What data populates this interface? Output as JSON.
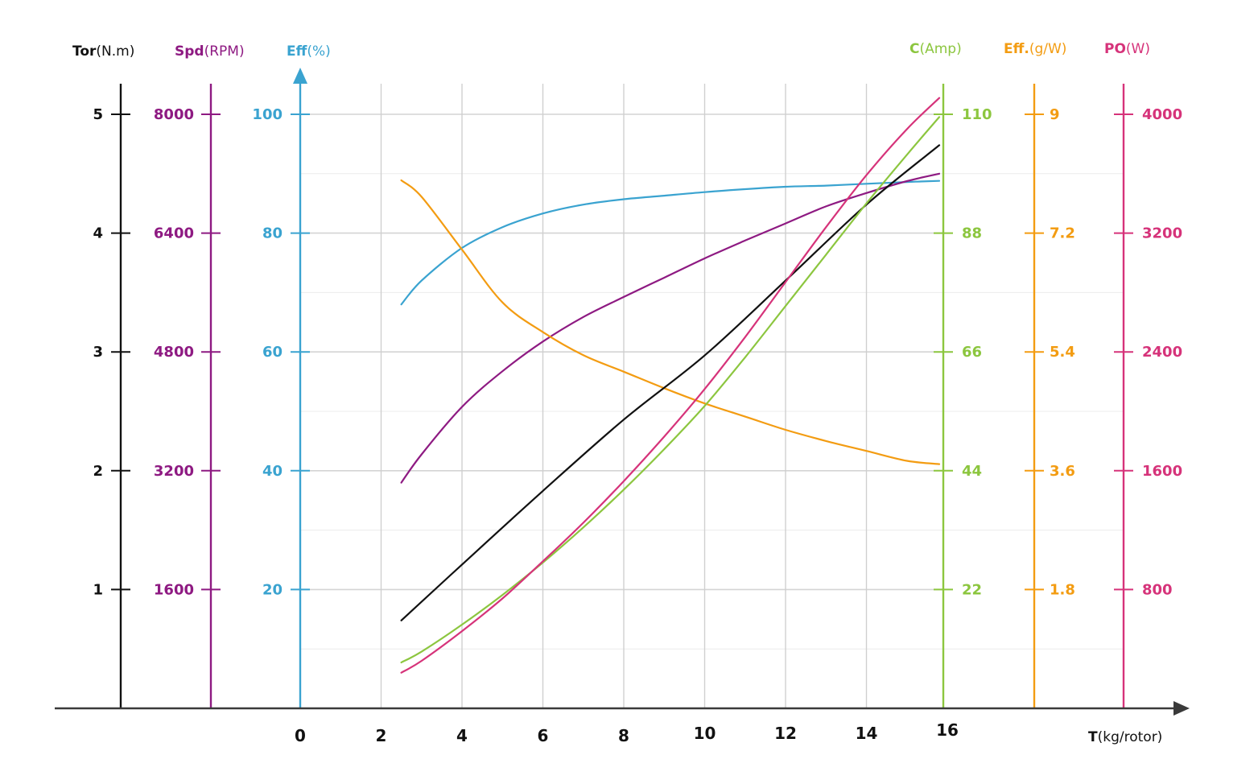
{
  "chart_data": {
    "type": "line",
    "xlabel": {
      "bold": "T",
      "unit": "(kg/rotor)"
    },
    "x_ticks": [
      "0",
      "2",
      "4",
      "6",
      "8",
      "10",
      "12",
      "14",
      "16"
    ],
    "xlim": [
      0,
      16
    ],
    "grid": true,
    "axes": [
      {
        "key": "tor",
        "bold": "Tor",
        "unit": "(N.m)",
        "color": "#111111",
        "ylim": [
          0,
          5
        ],
        "ticks": [
          "1",
          "2",
          "3",
          "4",
          "5"
        ]
      },
      {
        "key": "spd",
        "bold": "Spd",
        "unit": "(RPM)",
        "color": "#8e1a82",
        "ylim": [
          0,
          8000
        ],
        "ticks": [
          "1600",
          "3200",
          "4800",
          "6400",
          "8000"
        ]
      },
      {
        "key": "eff",
        "bold": "Eff",
        "unit": "(%)",
        "color": "#3aa3d0",
        "ylim": [
          0,
          100
        ],
        "ticks": [
          "20",
          "40",
          "60",
          "80",
          "100"
        ]
      },
      {
        "key": "c",
        "bold": "C",
        "unit": "(Amp)",
        "color": "#8cc63f",
        "ylim": [
          0,
          110
        ],
        "ticks": [
          "22",
          "44",
          "66",
          "88",
          "110"
        ]
      },
      {
        "key": "effgw",
        "bold": "Eff.",
        "unit": "(g/W)",
        "color": "#f39c12",
        "ylim": [
          0,
          9
        ],
        "ticks": [
          "1.8",
          "3.6",
          "5.4",
          "7.2",
          "9"
        ]
      },
      {
        "key": "po",
        "bold": "PO",
        "unit": "(W)",
        "color": "#d6337a",
        "ylim": [
          0,
          4000
        ],
        "ticks": [
          "800",
          "1600",
          "2400",
          "3200",
          "4000"
        ]
      }
    ],
    "series": [
      {
        "axis": "eff",
        "color": "#3aa3d0",
        "x": [
          2.5,
          3,
          4,
          5,
          6,
          7,
          8,
          9,
          10,
          11,
          12,
          13,
          14,
          15,
          15.8
        ],
        "y": [
          68,
          72,
          77.5,
          81,
          83.3,
          84.8,
          85.7,
          86.3,
          86.9,
          87.4,
          87.8,
          88,
          88.3,
          88.6,
          88.8
        ]
      },
      {
        "axis": "spd",
        "color": "#8e1a82",
        "x": [
          2.5,
          3,
          4,
          5,
          6,
          7,
          8,
          9,
          10,
          11,
          12,
          13,
          14,
          15,
          15.8
        ],
        "y": [
          3040,
          3420,
          4060,
          4540,
          4940,
          5270,
          5540,
          5800,
          6060,
          6300,
          6530,
          6760,
          6940,
          7100,
          7200
        ]
      },
      {
        "axis": "effgw",
        "color": "#f39c12",
        "x": [
          2.5,
          3,
          4,
          5,
          6,
          7,
          8,
          9,
          10,
          11,
          12,
          13,
          14,
          15,
          15.8
        ],
        "y": [
          8.0,
          7.75,
          6.95,
          6.15,
          5.7,
          5.35,
          5.1,
          4.85,
          4.62,
          4.42,
          4.22,
          4.05,
          3.9,
          3.75,
          3.7
        ]
      },
      {
        "axis": "tor",
        "color": "#111111",
        "x": [
          2.5,
          4,
          6,
          8,
          10,
          12,
          14,
          15.8
        ],
        "y": [
          0.74,
          1.21,
          1.83,
          2.43,
          2.97,
          3.6,
          4.24,
          4.74
        ]
      },
      {
        "axis": "c",
        "color": "#8cc63f",
        "x": [
          2.5,
          3,
          4,
          5,
          6,
          7,
          8,
          9,
          10,
          11,
          12,
          13,
          14,
          15,
          15.8
        ],
        "y": [
          8.5,
          10.5,
          15.5,
          21.0,
          27.0,
          33.5,
          40.5,
          48.0,
          56.0,
          65.0,
          74.5,
          84.0,
          93.5,
          102.5,
          109.5
        ]
      },
      {
        "axis": "po",
        "color": "#d6337a",
        "x": [
          2.5,
          3,
          4,
          5,
          6,
          7,
          8,
          9,
          10,
          11,
          12,
          13,
          14,
          15,
          15.8
        ],
        "y": [
          240,
          320,
          520,
          740,
          990,
          1250,
          1530,
          1830,
          2150,
          2500,
          2870,
          3240,
          3590,
          3900,
          4110
        ]
      }
    ]
  }
}
